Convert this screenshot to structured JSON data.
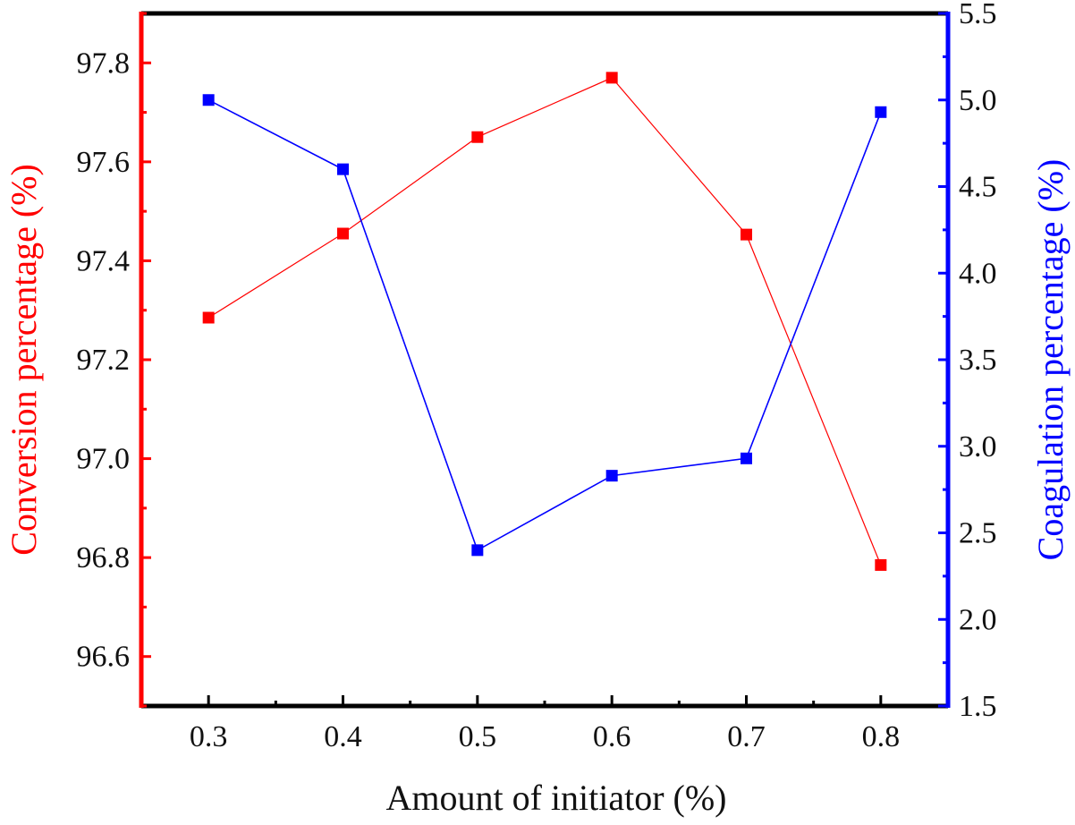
{
  "chart_data": {
    "type": "line",
    "x": [
      0.3,
      0.4,
      0.5,
      0.6,
      0.7,
      0.8
    ],
    "x_tick_labels": [
      "0.3",
      "0.4",
      "0.5",
      "0.6",
      "0.7",
      "0.8"
    ],
    "xlim": [
      0.25,
      0.85
    ],
    "xlabel": "Amount of initiator (%)",
    "left_axis": {
      "label": "Conversion percentage (%)",
      "ylim": [
        96.5,
        97.9
      ],
      "ticks": [
        96.6,
        96.8,
        97.0,
        97.2,
        97.4,
        97.6,
        97.8
      ],
      "tick_labels": [
        "96.6",
        "96.8",
        "97.0",
        "97.2",
        "97.4",
        "97.6",
        "97.8"
      ]
    },
    "right_axis": {
      "label": "Coagulation percentage (%)",
      "ylim": [
        1.5,
        5.5
      ],
      "ticks": [
        1.5,
        2.0,
        2.5,
        3.0,
        3.5,
        4.0,
        4.5,
        5.0,
        5.5
      ],
      "tick_labels": [
        "1.5",
        "2.0",
        "2.5",
        "3.0",
        "3.5",
        "4.0",
        "4.5",
        "5.0",
        "5.5"
      ]
    },
    "series": [
      {
        "name": "Conversion percentage",
        "axis": "left",
        "color": "#ff0000",
        "marker": "square",
        "values": [
          97.285,
          97.455,
          97.65,
          97.77,
          97.453,
          96.785
        ]
      },
      {
        "name": "Coagulation percentage",
        "axis": "right",
        "color": "#0000ff",
        "marker": "square",
        "values": [
          5.0,
          4.6,
          2.4,
          2.83,
          2.93,
          4.93
        ]
      }
    ]
  },
  "colors": {
    "left_axis": "#ff0000",
    "right_axis": "#0000ff",
    "frame": "#000000"
  }
}
